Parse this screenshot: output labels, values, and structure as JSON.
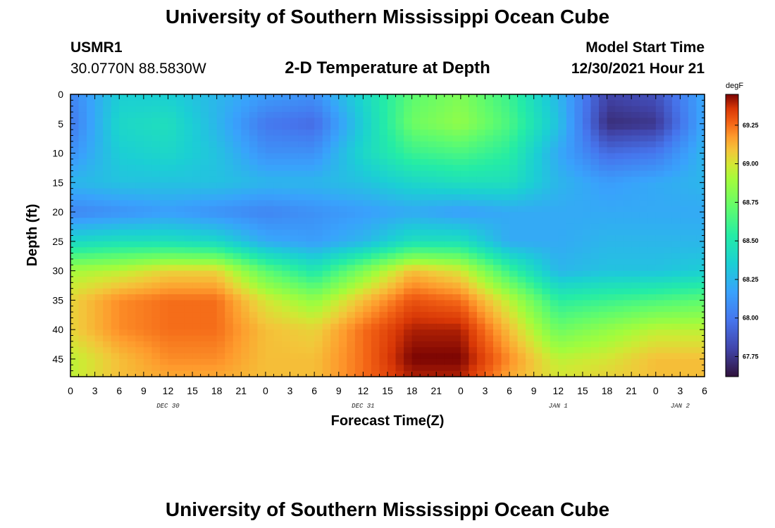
{
  "header": {
    "title": "University of Southern Mississippi Ocean Cube",
    "station_id": "USMR1",
    "coordinates": "30.0770N  88.5830W",
    "plot_title": "2-D Temperature at Depth",
    "model_start_label": "Model Start Time",
    "model_start_value": "12/30/2021 Hour 21"
  },
  "footer": {
    "title": "University of Southern Mississippi Ocean Cube"
  },
  "chart_data": {
    "type": "heatmap",
    "title": "2-D Temperature at Depth",
    "xlabel": "Forecast Time(Z)",
    "ylabel": "Depth (ft)",
    "x_tick_labels": [
      "0",
      "3",
      "6",
      "9",
      "12",
      "15",
      "18",
      "21",
      "0",
      "3",
      "6",
      "9",
      "12",
      "15",
      "18",
      "21",
      "0",
      "3",
      "6",
      "9",
      "12",
      "15",
      "18",
      "21",
      "0",
      "3",
      "6"
    ],
    "x_range_hours": [
      0,
      78
    ],
    "date_labels": [
      {
        "label": "DEC 30",
        "hour": 12
      },
      {
        "label": "DEC 31",
        "hour": 36
      },
      {
        "label": "JAN 1",
        "hour": 60
      },
      {
        "label": "JAN 2",
        "hour": 75
      }
    ],
    "y_tick_labels": [
      "0",
      "5",
      "10",
      "15",
      "20",
      "25",
      "30",
      "35",
      "40",
      "45"
    ],
    "y_ticks": [
      0,
      5,
      10,
      15,
      20,
      25,
      30,
      35,
      40,
      45
    ],
    "y_range_ft": [
      0,
      48
    ],
    "colorbar": {
      "unit": "degF",
      "min": 67.62,
      "max": 69.45,
      "tick_labels": [
        "69.25",
        "69.00",
        "68.75",
        "68.50",
        "68.25",
        "68.00",
        "67.75"
      ],
      "tick_values": [
        69.25,
        69.0,
        68.75,
        68.5,
        68.25,
        68.0,
        67.75
      ]
    },
    "depths_ft": [
      0,
      5,
      10,
      15,
      20,
      25,
      30,
      35,
      40,
      45,
      48
    ],
    "times_hr": [
      0,
      6,
      12,
      18,
      24,
      30,
      36,
      42,
      48,
      54,
      60,
      66,
      72,
      78
    ],
    "values_degF": [
      [
        68.05,
        68.35,
        68.35,
        68.25,
        68.15,
        68.1,
        68.4,
        68.7,
        68.8,
        68.6,
        68.25,
        67.8,
        67.85,
        68.2
      ],
      [
        68.0,
        68.4,
        68.45,
        68.25,
        68.0,
        67.95,
        68.35,
        68.75,
        68.85,
        68.65,
        68.3,
        67.72,
        67.75,
        68.2
      ],
      [
        68.1,
        68.35,
        68.4,
        68.3,
        68.1,
        68.1,
        68.4,
        68.6,
        68.65,
        68.55,
        68.2,
        67.95,
        68.0,
        68.25
      ],
      [
        68.25,
        68.3,
        68.3,
        68.3,
        68.25,
        68.25,
        68.3,
        68.4,
        68.45,
        68.45,
        68.25,
        68.15,
        68.2,
        68.25
      ],
      [
        68.05,
        68.1,
        68.15,
        68.1,
        68.05,
        68.1,
        68.15,
        68.2,
        68.15,
        68.2,
        68.2,
        68.2,
        68.2,
        68.2
      ],
      [
        68.4,
        68.45,
        68.45,
        68.4,
        68.2,
        68.15,
        68.25,
        68.45,
        68.45,
        68.2,
        68.2,
        68.25,
        68.25,
        68.25
      ],
      [
        68.9,
        68.95,
        69.05,
        69.05,
        68.7,
        68.5,
        68.8,
        69.1,
        69.0,
        68.6,
        68.25,
        68.3,
        68.3,
        68.35
      ],
      [
        69.05,
        69.2,
        69.25,
        69.25,
        69.0,
        68.85,
        69.1,
        69.3,
        69.25,
        68.95,
        68.55,
        68.6,
        68.65,
        68.7
      ],
      [
        69.05,
        69.2,
        69.25,
        69.25,
        69.1,
        69.05,
        69.25,
        69.4,
        69.4,
        69.1,
        68.75,
        68.85,
        68.95,
        68.95
      ],
      [
        68.95,
        69.1,
        69.2,
        69.2,
        69.1,
        69.1,
        69.25,
        69.45,
        69.45,
        69.2,
        68.95,
        69.0,
        69.1,
        69.1
      ],
      [
        68.95,
        69.1,
        69.15,
        69.15,
        69.1,
        69.1,
        69.25,
        69.4,
        69.4,
        69.15,
        69.0,
        69.05,
        69.1,
        69.1
      ]
    ]
  }
}
